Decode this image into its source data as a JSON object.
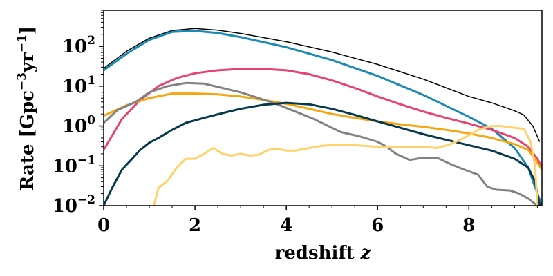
{
  "chart_data": {
    "type": "line",
    "title": "",
    "xlabel": "redshift",
    "xlabel_var": "z",
    "ylabel": "Rate [Gpc",
    "ylabel_exp1": "−3",
    "ylabel_mid": "yr",
    "ylabel_exp2": "−1",
    "ylabel_end": "]",
    "xlim": [
      0,
      9.6
    ],
    "ylim": [
      0.01,
      800
    ],
    "yscale": "log",
    "grid": false,
    "legend": "none",
    "x_ticks": [
      {
        "value": 0,
        "label": "0"
      },
      {
        "value": 2,
        "label": "2"
      },
      {
        "value": 4,
        "label": "4"
      },
      {
        "value": 6,
        "label": "6"
      },
      {
        "value": 8,
        "label": "8"
      }
    ],
    "y_ticks": [
      {
        "value": 0.01,
        "base": "10",
        "exp": "−2"
      },
      {
        "value": 0.1,
        "base": "10",
        "exp": "−1"
      },
      {
        "value": 1,
        "base": "10",
        "exp": "0"
      },
      {
        "value": 10,
        "base": "10",
        "exp": "1"
      },
      {
        "value": 100,
        "base": "10",
        "exp": "2"
      }
    ],
    "series": [
      {
        "color": "#000000",
        "width": 1.5,
        "points": [
          [
            0,
            28
          ],
          [
            0.5,
            75
          ],
          [
            1,
            160
          ],
          [
            1.5,
            250
          ],
          [
            2,
            280
          ],
          [
            2.5,
            255
          ],
          [
            3,
            210
          ],
          [
            4,
            130
          ],
          [
            5,
            72
          ],
          [
            6,
            35
          ],
          [
            7,
            15
          ],
          [
            8,
            5.5
          ],
          [
            8.5,
            3.8
          ],
          [
            9,
            2.4
          ],
          [
            9.2,
            1.9
          ],
          [
            9.4,
            1.0
          ],
          [
            9.55,
            0.4
          ]
        ]
      },
      {
        "color": "#1a8ab4",
        "width": 3,
        "points": [
          [
            0,
            25
          ],
          [
            0.5,
            65
          ],
          [
            1,
            145
          ],
          [
            1.5,
            230
          ],
          [
            2,
            245
          ],
          [
            2.5,
            215
          ],
          [
            3,
            170
          ],
          [
            4,
            95
          ],
          [
            5,
            45
          ],
          [
            6,
            18
          ],
          [
            7,
            6
          ],
          [
            8,
            1.7
          ],
          [
            8.5,
            0.85
          ],
          [
            9,
            0.28
          ],
          [
            9.3,
            0.09
          ],
          [
            9.5,
            0.02
          ],
          [
            9.6,
            0.01
          ]
        ]
      },
      {
        "color": "#e8436e",
        "width": 3,
        "points": [
          [
            0,
            0.25
          ],
          [
            0.4,
            1.5
          ],
          [
            0.8,
            4.5
          ],
          [
            1.2,
            10
          ],
          [
            1.6,
            16
          ],
          [
            2,
            21
          ],
          [
            2.5,
            25
          ],
          [
            3,
            27
          ],
          [
            3.5,
            27
          ],
          [
            4,
            25
          ],
          [
            4.5,
            20
          ],
          [
            5,
            14
          ],
          [
            5.5,
            9
          ],
          [
            6,
            5.5
          ],
          [
            6.5,
            3.5
          ],
          [
            7,
            2.3
          ],
          [
            7.5,
            1.6
          ],
          [
            8,
            1.15
          ],
          [
            8.5,
            0.8
          ],
          [
            9,
            0.5
          ],
          [
            9.3,
            0.3
          ],
          [
            9.5,
            0.15
          ],
          [
            9.6,
            0.09
          ]
        ]
      },
      {
        "color": "#f6a50f",
        "width": 3,
        "points": [
          [
            0,
            1.8
          ],
          [
            0.5,
            3.3
          ],
          [
            1,
            5
          ],
          [
            1.5,
            6.5
          ],
          [
            2,
            6.5
          ],
          [
            2.5,
            6.2
          ],
          [
            3,
            5.5
          ],
          [
            3.5,
            4.5
          ],
          [
            4,
            3.6
          ],
          [
            4.5,
            2.7
          ],
          [
            5,
            2
          ],
          [
            5.5,
            1.6
          ],
          [
            6,
            1.3
          ],
          [
            6.5,
            1.1
          ],
          [
            7,
            0.95
          ],
          [
            7.5,
            0.8
          ],
          [
            8,
            0.65
          ],
          [
            8.5,
            0.5
          ],
          [
            9,
            0.35
          ],
          [
            9.3,
            0.25
          ],
          [
            9.5,
            0.12
          ],
          [
            9.6,
            0.08
          ]
        ]
      },
      {
        "color": "#828282",
        "width": 3,
        "points": [
          [
            0,
            1.2
          ],
          [
            0.3,
            2.5
          ],
          [
            0.7,
            4
          ],
          [
            1,
            7
          ],
          [
            1.4,
            10
          ],
          [
            1.8,
            12
          ],
          [
            2.2,
            11.5
          ],
          [
            2.6,
            9
          ],
          [
            3,
            7
          ],
          [
            3.4,
            5
          ],
          [
            3.8,
            3.5
          ],
          [
            4.2,
            2.3
          ],
          [
            4.6,
            1.5
          ],
          [
            5,
            0.9
          ],
          [
            5.2,
            0.7
          ],
          [
            5.6,
            0.55
          ],
          [
            6,
            0.4
          ],
          [
            6.2,
            0.3
          ],
          [
            6.4,
            0.2
          ],
          [
            6.7,
            0.14
          ],
          [
            7,
            0.16
          ],
          [
            7.3,
            0.16
          ],
          [
            7.6,
            0.11
          ],
          [
            7.9,
            0.08
          ],
          [
            8.2,
            0.06
          ],
          [
            8.4,
            0.03
          ],
          [
            8.6,
            0.025
          ],
          [
            8.9,
            0.024
          ],
          [
            9.1,
            0.02
          ],
          [
            9.3,
            0.015
          ],
          [
            9.5,
            0.01
          ]
        ]
      },
      {
        "color": "#06394d",
        "width": 3,
        "points": [
          [
            0,
            0.01
          ],
          [
            0.2,
            0.03
          ],
          [
            0.4,
            0.08
          ],
          [
            0.6,
            0.14
          ],
          [
            0.8,
            0.25
          ],
          [
            1,
            0.38
          ],
          [
            1.2,
            0.5
          ],
          [
            1.5,
            0.8
          ],
          [
            1.8,
            1.2
          ],
          [
            2.2,
            1.6
          ],
          [
            2.6,
            2.1
          ],
          [
            3,
            2.7
          ],
          [
            3.5,
            3.4
          ],
          [
            4,
            3.8
          ],
          [
            4.5,
            3.5
          ],
          [
            5,
            2.7
          ],
          [
            5.5,
            1.9
          ],
          [
            6,
            1.3
          ],
          [
            6.5,
            0.9
          ],
          [
            7,
            0.62
          ],
          [
            7.5,
            0.45
          ],
          [
            8,
            0.33
          ],
          [
            8.5,
            0.24
          ],
          [
            9,
            0.15
          ],
          [
            9.3,
            0.09
          ],
          [
            9.45,
            0.04
          ],
          [
            9.55,
            0.01
          ]
        ]
      },
      {
        "color": "#ffd26b",
        "width": 3,
        "points": [
          [
            1.1,
            0.01
          ],
          [
            1.2,
            0.028
          ],
          [
            1.4,
            0.042
          ],
          [
            1.6,
            0.09
          ],
          [
            1.8,
            0.15
          ],
          [
            2,
            0.15
          ],
          [
            2.2,
            0.2
          ],
          [
            2.4,
            0.28
          ],
          [
            2.6,
            0.2
          ],
          [
            2.8,
            0.18
          ],
          [
            3,
            0.2
          ],
          [
            3.2,
            0.18
          ],
          [
            3.4,
            0.19
          ],
          [
            3.6,
            0.25
          ],
          [
            3.8,
            0.27
          ],
          [
            4,
            0.24
          ],
          [
            4.2,
            0.24
          ],
          [
            4.5,
            0.28
          ],
          [
            4.8,
            0.32
          ],
          [
            5,
            0.33
          ],
          [
            5.5,
            0.33
          ],
          [
            6,
            0.3
          ],
          [
            6.5,
            0.3
          ],
          [
            7,
            0.3
          ],
          [
            7.3,
            0.28
          ],
          [
            7.6,
            0.35
          ],
          [
            7.9,
            0.5
          ],
          [
            8.2,
            0.8
          ],
          [
            8.5,
            1.0
          ],
          [
            8.7,
            1.0
          ],
          [
            9,
            0.9
          ],
          [
            9.2,
            0.85
          ],
          [
            9.35,
            0.4
          ],
          [
            9.45,
            0.1
          ],
          [
            9.5,
            0.01
          ]
        ]
      }
    ]
  }
}
